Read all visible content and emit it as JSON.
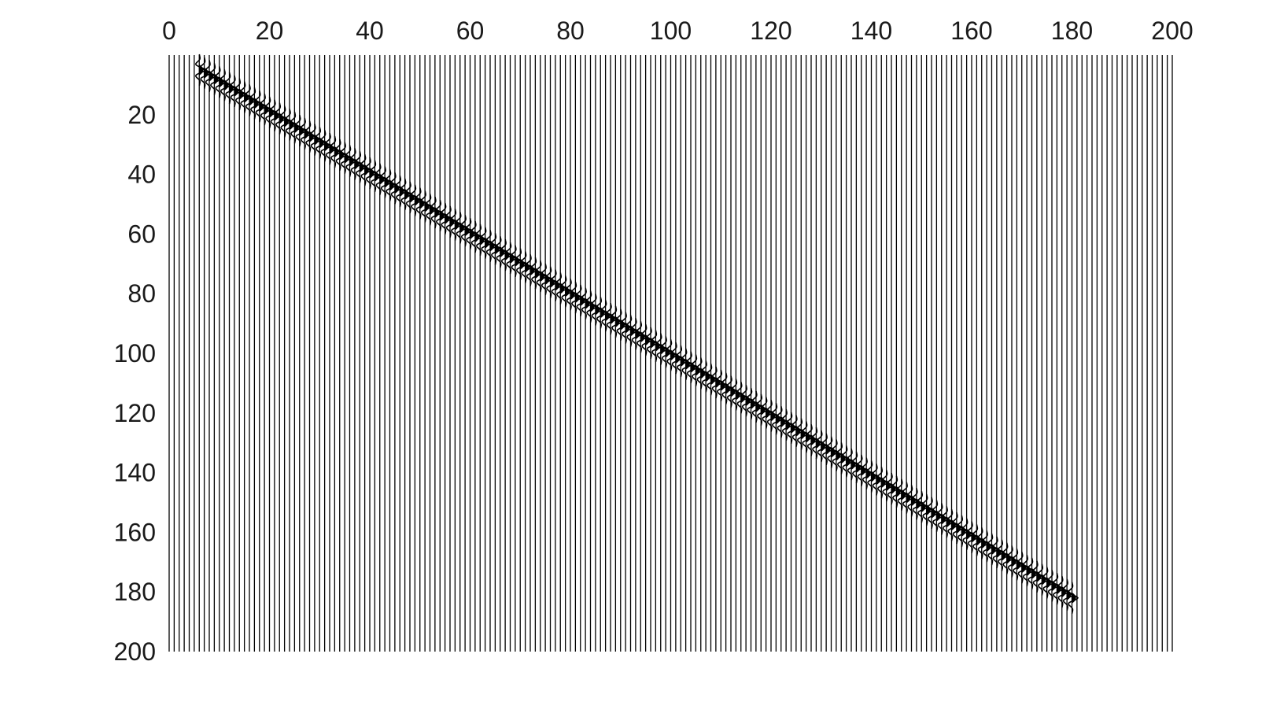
{
  "chart_data": {
    "type": "wiggle",
    "title": "",
    "xlabel": "",
    "ylabel": "",
    "xlim": [
      0,
      200
    ],
    "ylim": [
      200,
      0
    ],
    "x_axis_position": "top",
    "y_axis_inverted": true,
    "x_ticks": [
      0,
      20,
      40,
      60,
      80,
      100,
      120,
      140,
      160,
      180,
      200
    ],
    "y_ticks": [
      20,
      40,
      60,
      80,
      100,
      120,
      140,
      160,
      180,
      200
    ],
    "x_tick_labels": [
      "0",
      "20",
      "40",
      "60",
      "80",
      "100",
      "120",
      "140",
      "160",
      "180",
      "200"
    ],
    "y_tick_labels": [
      "20",
      "40",
      "60",
      "80",
      "100",
      "120",
      "140",
      "160",
      "180",
      "200"
    ],
    "trace_count": 200,
    "trace_spacing": 1,
    "series": [
      {
        "x": [
          6,
          180
        ],
        "y": [
          5,
          182
        ]
      }
    ],
    "grid": false,
    "legend": "none",
    "colors": {
      "trace": "#000000",
      "background": "#ffffff",
      "text": "#1a1a1a"
    }
  }
}
